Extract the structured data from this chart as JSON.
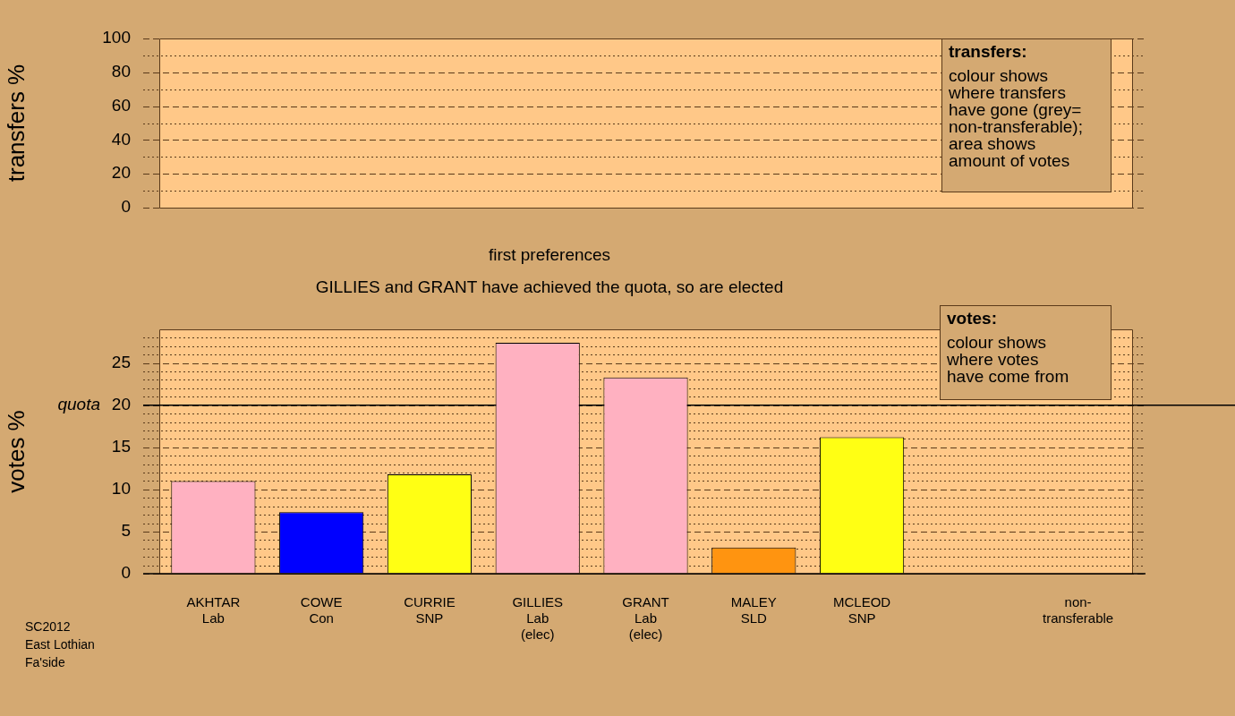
{
  "chart_data": [
    {
      "type": "bar",
      "ylabel": "transfers %",
      "categories": [
        null,
        null,
        null,
        null,
        null,
        null,
        null,
        null,
        null
      ],
      "values": [
        null,
        null,
        null,
        null,
        null,
        null,
        null,
        null,
        null
      ],
      "ylim": [
        0,
        100
      ],
      "yticks": [
        0,
        {
          "value": 10,
          "label": null
        },
        20,
        {
          "value": 30,
          "label": null
        },
        40,
        {
          "value": 50,
          "label": null
        },
        60,
        {
          "value": 70,
          "label": null
        },
        80,
        {
          "value": 90,
          "label": null
        },
        100
      ],
      "grid": true,
      "tick_labels": "y",
      "annotations": [
        "transfers:\ncolour shows\nwhere transfers\nhave gone (grey=\nnon-transferable);\narea shows\namount of votes"
      ]
    },
    {
      "type": "bar",
      "title": "first preferences",
      "subtitle": "GILLIES and GRANT have achieved the quota, so are elected",
      "ylabel": "votes %",
      "categories": [
        "AKHTAR\nLab",
        "COWE\nCon",
        "CURRIE\nSNP",
        "GILLIES\nLab\n(elec)",
        "GRANT\nLab\n(elec)",
        "MALEY\nSLD",
        "MCLEOD\nSNP",
        null,
        "non-\ntransferable"
      ],
      "values": [
        11.0,
        7.3,
        11.8,
        27.4,
        23.3,
        3.1,
        16.2,
        null,
        null
      ],
      "colors": [
        "#ffb1c1",
        "#0000ff",
        "#ffff14",
        "#ffb1c1",
        "#ffb1c1",
        "#ff9410",
        "#ffff14",
        null,
        null
      ],
      "ylim": [
        0,
        29
      ],
      "yticks": [
        0,
        {
          "value": 1,
          "label": null
        },
        {
          "value": 2,
          "label": null
        },
        {
          "value": 3,
          "label": null
        },
        {
          "value": 4,
          "label": null
        },
        5,
        {
          "value": 6,
          "label": null
        },
        {
          "value": 7,
          "label": null
        },
        {
          "value": 8,
          "label": null
        },
        {
          "value": 9,
          "label": null
        },
        10,
        {
          "value": 11,
          "label": null
        },
        {
          "value": 12,
          "label": null
        },
        {
          "value": 13,
          "label": null
        },
        {
          "value": 14,
          "label": null
        },
        15,
        {
          "value": 16,
          "label": null
        },
        {
          "value": 17,
          "label": null
        },
        {
          "value": 18,
          "label": null
        },
        {
          "value": 19,
          "label": null
        },
        20,
        {
          "value": 21,
          "label": null
        },
        {
          "value": 22,
          "label": null
        },
        {
          "value": 23,
          "label": null
        },
        {
          "value": 24,
          "label": null
        },
        25,
        {
          "value": 26,
          "label": null
        },
        {
          "value": 27,
          "label": null
        },
        {
          "value": 28,
          "label": null
        }
      ],
      "grid": true,
      "ref_lines": [
        {
          "axis": "y",
          "value": 20,
          "label": "quota"
        }
      ],
      "annotations": [
        "votes:\ncolour shows\nwhere votes\nhave come from",
        "SC2012\nEast Lothian\nFa'side"
      ]
    }
  ]
}
